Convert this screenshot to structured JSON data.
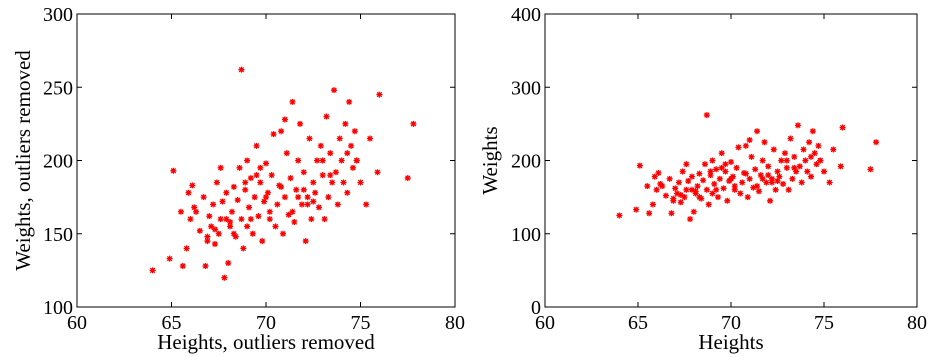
{
  "chart_data": [
    {
      "type": "scatter",
      "xlabel": "Heights, outliers removed",
      "ylabel": "Weights, outliers removed",
      "xlim": [
        60,
        80
      ],
      "ylim": [
        100,
        300
      ],
      "xticks": [
        "60",
        "65",
        "70",
        "75",
        "80"
      ],
      "yticks": [
        "100",
        "150",
        "200",
        "250",
        "300"
      ],
      "marker": "asterisk",
      "color": "#ff0000",
      "grid": false,
      "series": [
        {
          "x": [
            64.0,
            64.9,
            65.1,
            65.5,
            65.6,
            65.8,
            65.9,
            66.0,
            66.1,
            66.3,
            66.5,
            66.7,
            66.8,
            66.9,
            67.0,
            67.1,
            67.2,
            67.3,
            67.4,
            67.5,
            67.6,
            67.7,
            67.8,
            67.9,
            68.0,
            68.1,
            68.2,
            68.3,
            68.4,
            68.5,
            68.6,
            68.7,
            68.8,
            68.9,
            69.0,
            69.1,
            69.2,
            69.3,
            69.4,
            69.5,
            69.6,
            69.7,
            69.8,
            69.9,
            70.0,
            70.1,
            70.2,
            70.3,
            70.5,
            70.6,
            70.7,
            70.8,
            70.9,
            71.0,
            71.1,
            71.2,
            71.3,
            71.4,
            71.5,
            71.6,
            71.7,
            71.8,
            71.9,
            72.0,
            72.1,
            72.2,
            72.3,
            72.4,
            72.5,
            72.6,
            72.7,
            72.8,
            72.9,
            73.0,
            73.1,
            73.2,
            73.3,
            73.4,
            73.5,
            73.6,
            73.7,
            73.8,
            73.9,
            74.0,
            74.1,
            74.2,
            74.3,
            74.4,
            74.5,
            74.6,
            74.7,
            74.8,
            75.0,
            75.3,
            75.5,
            75.9,
            76.0,
            77.5,
            77.8,
            68.7,
            67.6,
            66.2,
            70.4,
            72.0,
            69.0,
            71.4,
            73.4,
            74.3,
            68.9,
            70.0,
            67.3,
            69.5,
            72.5,
            71.0,
            70.8,
            68.3,
            66.9,
            73.0,
            69.7,
            71.7,
            70.2,
            67.9,
            72.2,
            74.8,
            69.2,
            68.1
          ],
          "y": [
            125,
            133,
            193,
            165,
            128,
            140,
            178,
            160,
            183,
            165,
            152,
            175,
            128,
            145,
            162,
            155,
            170,
            143,
            185,
            150,
            160,
            172,
            120,
            178,
            130,
            155,
            165,
            182,
            148,
            173,
            195,
            160,
            140,
            180,
            155,
            168,
            188,
            150,
            175,
            210,
            162,
            185,
            145,
            172,
            198,
            178,
            160,
            190,
            155,
            170,
            183,
            220,
            150,
            175,
            205,
            163,
            188,
            240,
            158,
            180,
            200,
            225,
            170,
            192,
            145,
            175,
            215,
            160,
            185,
            178,
            200,
            168,
            210,
            190,
            160,
            230,
            175,
            205,
            185,
            248,
            192,
            170,
            215,
            200,
            185,
            225,
            178,
            240,
            210,
            195,
            220,
            200,
            185,
            170,
            215,
            192,
            245,
            188,
            225,
            262,
            195,
            168,
            218,
            180,
            200,
            165,
            190,
            205,
            185,
            175,
            153,
            190,
            172,
            228,
            182,
            150,
            148,
            200,
            195,
            175,
            165,
            160,
            170,
            200,
            160,
            158
          ]
        }
      ]
    },
    {
      "type": "scatter",
      "xlabel": "Heights",
      "ylabel": "Weights",
      "xlim": [
        60,
        80
      ],
      "ylim": [
        0,
        400
      ],
      "xticks": [
        "60",
        "65",
        "70",
        "75",
        "80"
      ],
      "yticks": [
        "0",
        "100",
        "200",
        "300",
        "400"
      ],
      "marker": "asterisk",
      "color": "#ff0000",
      "grid": false,
      "series": [
        {
          "x": [
            64.0,
            64.9,
            65.1,
            65.5,
            65.6,
            65.8,
            65.9,
            66.0,
            66.1,
            66.3,
            66.5,
            66.7,
            66.8,
            66.9,
            67.0,
            67.1,
            67.2,
            67.3,
            67.4,
            67.5,
            67.6,
            67.7,
            67.8,
            67.9,
            68.0,
            68.1,
            68.2,
            68.3,
            68.4,
            68.5,
            68.6,
            68.7,
            68.8,
            68.9,
            69.0,
            69.1,
            69.2,
            69.3,
            69.4,
            69.5,
            69.6,
            69.7,
            69.8,
            69.9,
            70.0,
            70.1,
            70.2,
            70.3,
            70.5,
            70.6,
            70.7,
            70.8,
            70.9,
            71.0,
            71.1,
            71.2,
            71.3,
            71.4,
            71.5,
            71.6,
            71.7,
            71.8,
            71.9,
            72.0,
            72.1,
            72.2,
            72.3,
            72.4,
            72.5,
            72.6,
            72.7,
            72.8,
            72.9,
            73.0,
            73.1,
            73.2,
            73.3,
            73.4,
            73.5,
            73.6,
            73.7,
            73.8,
            73.9,
            74.0,
            74.1,
            74.2,
            74.3,
            74.4,
            74.5,
            74.6,
            74.7,
            74.8,
            75.0,
            75.3,
            75.5,
            75.9,
            76.0,
            77.5,
            77.8,
            68.7,
            67.6,
            66.2,
            70.4,
            72.0,
            69.0,
            71.4,
            73.4,
            74.3,
            68.9,
            70.0,
            67.3,
            69.5,
            72.5,
            71.0,
            70.8,
            68.3,
            66.9,
            73.0,
            69.7,
            71.7,
            70.2,
            67.9,
            72.2,
            74.8,
            69.2,
            68.1
          ],
          "y": [
            125,
            133,
            193,
            165,
            128,
            140,
            178,
            160,
            183,
            165,
            152,
            175,
            128,
            145,
            162,
            155,
            170,
            143,
            185,
            150,
            160,
            172,
            120,
            178,
            130,
            155,
            165,
            182,
            148,
            173,
            195,
            160,
            140,
            180,
            155,
            168,
            188,
            150,
            175,
            210,
            162,
            185,
            145,
            172,
            198,
            178,
            160,
            190,
            155,
            170,
            183,
            220,
            150,
            175,
            205,
            163,
            188,
            240,
            158,
            180,
            200,
            225,
            170,
            192,
            145,
            175,
            215,
            160,
            185,
            178,
            200,
            168,
            210,
            190,
            160,
            230,
            175,
            205,
            185,
            248,
            192,
            170,
            215,
            200,
            185,
            225,
            178,
            240,
            210,
            195,
            220,
            200,
            185,
            170,
            215,
            192,
            245,
            188,
            225,
            262,
            195,
            168,
            218,
            180,
            200,
            165,
            190,
            205,
            185,
            175,
            153,
            190,
            172,
            228,
            182,
            150,
            148,
            200,
            195,
            175,
            165,
            160,
            170,
            200,
            160,
            158
          ]
        }
      ]
    }
  ]
}
